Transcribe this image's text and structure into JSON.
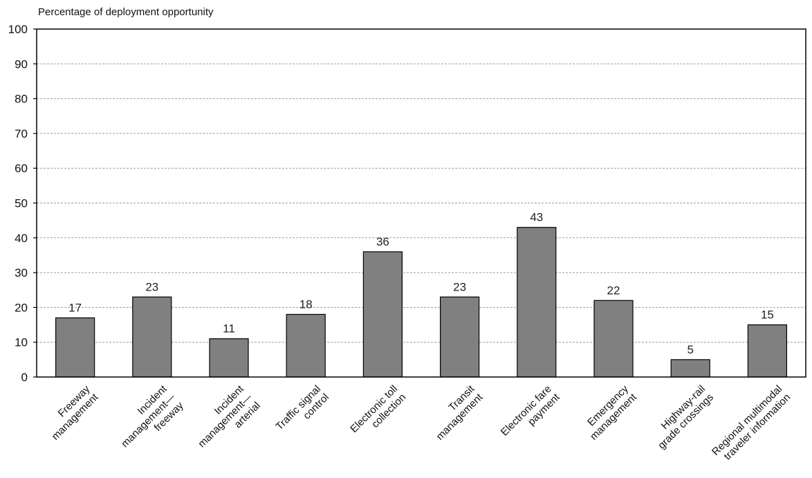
{
  "chart_data": {
    "type": "bar",
    "ylabel": "Percentage of deployment opportunity",
    "ylim": [
      0,
      100
    ],
    "yticks": [
      0,
      10,
      20,
      30,
      40,
      50,
      60,
      70,
      80,
      90,
      100
    ],
    "grid": true,
    "categories": [
      [
        "Freeway",
        "management"
      ],
      [
        "Incident",
        "management—",
        "freeway"
      ],
      [
        "Incident",
        "management—",
        "arterial"
      ],
      [
        "Traffic signal",
        "control"
      ],
      [
        "Electronic toll",
        "collection"
      ],
      [
        "Transit",
        "management"
      ],
      [
        "Electronic fare",
        "payment"
      ],
      [
        "Emergency",
        "management"
      ],
      [
        "Highway-rail",
        "grade crossings"
      ],
      [
        "Regional multimodal",
        "traveler information"
      ]
    ],
    "values": [
      17,
      23,
      11,
      18,
      36,
      23,
      43,
      22,
      5,
      15
    ],
    "colors": {
      "bar": "#808080",
      "bar_edge": "#000000",
      "grid": "#9a9a9a",
      "axis": "#000000"
    }
  }
}
